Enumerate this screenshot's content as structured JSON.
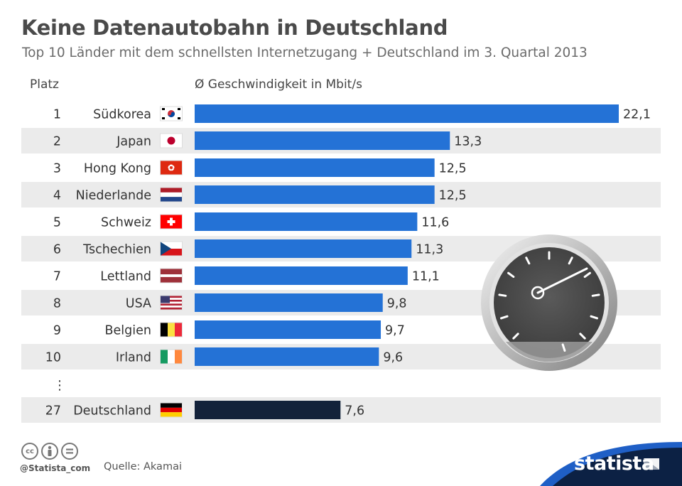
{
  "title": "Keine Datenautobahn in Deutschland",
  "subtitle": "Top 10 Länder mit dem schnellsten Internetzugang + Deutschland im 3. Quartal 2013",
  "headers": {
    "rank": "Platz",
    "speed": "Ø Geschwindigkeit in Mbit/s"
  },
  "ellipsis": "⋮",
  "colors": {
    "bar": "#2472d6",
    "highlight": "#13223a",
    "stripe": "#ebebeb"
  },
  "chart_data": {
    "type": "bar",
    "orientation": "horizontal",
    "title": "Keine Datenautobahn in Deutschland",
    "subtitle": "Top 10 Länder mit dem schnellsten Internetzugang + Deutschland im 3. Quartal 2013",
    "xlabel": "Ø Geschwindigkeit in Mbit/s",
    "rows": [
      {
        "rank": "1",
        "country": "Südkorea",
        "flag": "kr-flag-icon",
        "value": 22.1,
        "label": "22,1"
      },
      {
        "rank": "2",
        "country": "Japan",
        "flag": "jp-flag-icon",
        "value": 13.3,
        "label": "13,3"
      },
      {
        "rank": "3",
        "country": "Hong Kong",
        "flag": "hk-flag-icon",
        "value": 12.5,
        "label": "12,5"
      },
      {
        "rank": "4",
        "country": "Niederlande",
        "flag": "nl-flag-icon",
        "value": 12.5,
        "label": "12,5"
      },
      {
        "rank": "5",
        "country": "Schweiz",
        "flag": "ch-flag-icon",
        "value": 11.6,
        "label": "11,6"
      },
      {
        "rank": "6",
        "country": "Tschechien",
        "flag": "cz-flag-icon",
        "value": 11.3,
        "label": "11,3"
      },
      {
        "rank": "7",
        "country": "Lettland",
        "flag": "lv-flag-icon",
        "value": 11.1,
        "label": "11,1"
      },
      {
        "rank": "8",
        "country": "USA",
        "flag": "us-flag-icon",
        "value": 9.8,
        "label": "9,8"
      },
      {
        "rank": "9",
        "country": "Belgien",
        "flag": "be-flag-icon",
        "value": 9.7,
        "label": "9,7"
      },
      {
        "rank": "10",
        "country": "Irland",
        "flag": "ie-flag-icon",
        "value": 9.6,
        "label": "9,6"
      },
      {
        "rank": "27",
        "country": "Deutschland",
        "flag": "de-flag-icon",
        "value": 7.6,
        "label": "7,6",
        "highlight": true
      }
    ]
  },
  "footer": {
    "license_icons": [
      "cc",
      "by",
      "="
    ],
    "handle": "@Statista_com",
    "source": "Quelle: Akamai",
    "brand": "statista"
  }
}
